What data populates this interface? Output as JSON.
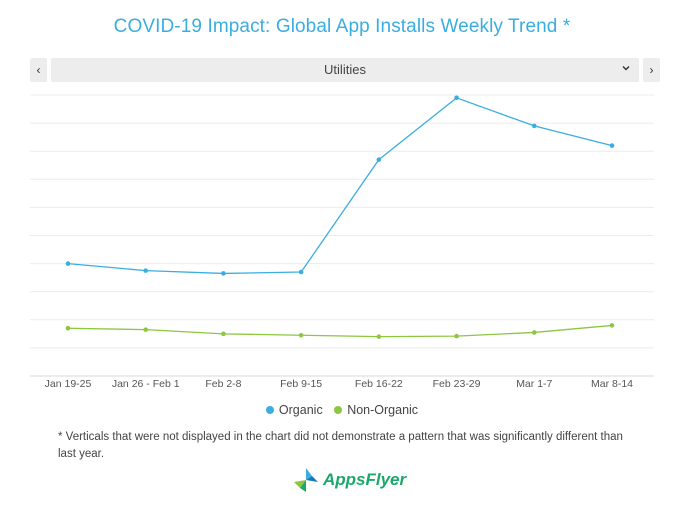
{
  "title": "COVID-19 Impact: Global App Installs Weekly Trend *",
  "selector": {
    "prev_label": "‹",
    "next_label": "›",
    "selected": "Utilities",
    "chevron": "⌄"
  },
  "chart_data": {
    "type": "line",
    "categories": [
      "Jan 19-25",
      "Jan 26 - Feb 1",
      "Feb 2-8",
      "Feb 9-15",
      "Feb 16-22",
      "Feb 23-29",
      "Mar 1-7",
      "Mar 8-14"
    ],
    "ylim": [
      0,
      10
    ],
    "grid": true,
    "legend_position": "bottom",
    "series": [
      {
        "name": "Organic",
        "color": "#3aaee0",
        "values": [
          4.0,
          3.75,
          3.65,
          3.7,
          7.7,
          9.9,
          8.9,
          8.2
        ]
      },
      {
        "name": "Non-Organic",
        "color": "#8dc63f",
        "values": [
          1.7,
          1.65,
          1.5,
          1.45,
          1.4,
          1.42,
          1.55,
          1.8
        ]
      }
    ]
  },
  "footnote": "* Verticals that were not displayed in the chart did not demonstrate a pattern that was significantly different than last year.",
  "logo": {
    "text": "AppsFlyer",
    "icon": "appsflyer-logo-icon"
  }
}
